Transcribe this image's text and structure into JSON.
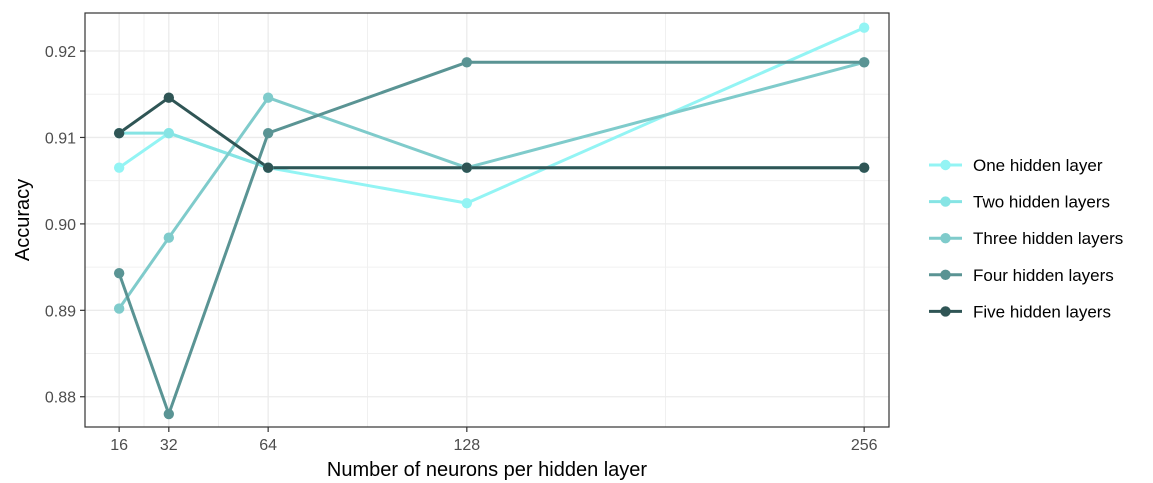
{
  "chart_data": {
    "type": "line",
    "xlabel": "Number of neurons per hidden layer",
    "ylabel": "Accuracy",
    "x": [
      16,
      32,
      64,
      128,
      256
    ],
    "xticks": [
      16,
      32,
      64,
      128,
      256
    ],
    "yticks": [
      0.88,
      0.89,
      0.9,
      0.91,
      0.92
    ],
    "ytick_labels": [
      "0.88",
      "0.89",
      "0.90",
      "0.91",
      "0.92"
    ],
    "xlim": [
      5,
      264
    ],
    "ylim": [
      0.8765,
      0.9244
    ],
    "grid": true,
    "legend_position": "right",
    "series": [
      {
        "name": "One hidden layer",
        "color": "#93f4f4",
        "values": [
          0.9065,
          0.9105,
          0.9065,
          0.9024,
          0.9227
        ]
      },
      {
        "name": "Two hidden layers",
        "color": "#86e4e4",
        "values": [
          0.9105,
          0.9105,
          0.9065,
          0.9065,
          0.9065
        ]
      },
      {
        "name": "Three hidden layers",
        "color": "#7fcbcb",
        "values": [
          0.8902,
          0.8984,
          0.9146,
          0.9065,
          0.9187
        ]
      },
      {
        "name": "Four hidden layers",
        "color": "#5a9494",
        "values": [
          0.8943,
          0.878,
          0.9105,
          0.9187,
          0.9187
        ]
      },
      {
        "name": "Five hidden layers",
        "color": "#2f5555",
        "values": [
          0.9105,
          0.9146,
          0.9065,
          0.9065,
          0.9065
        ]
      }
    ]
  }
}
